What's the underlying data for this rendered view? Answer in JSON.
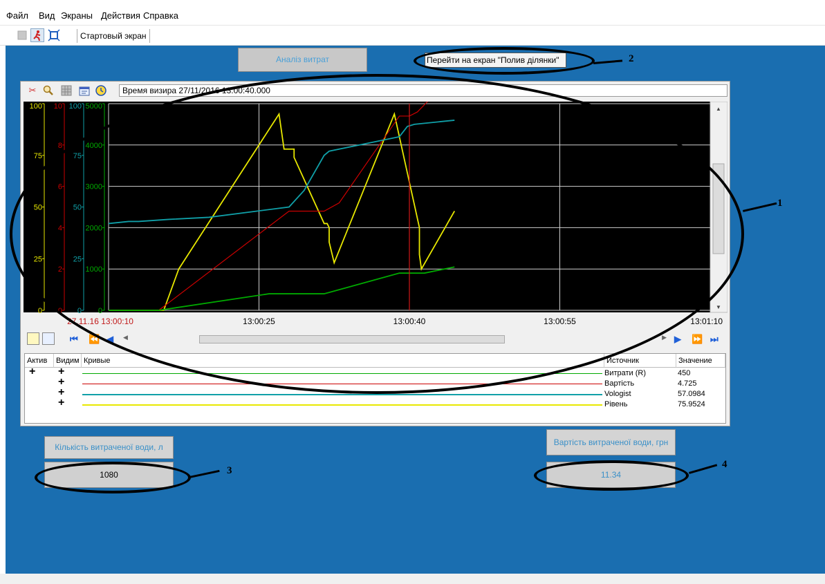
{
  "menu": [
    "Файл",
    "Вид",
    "Экраны",
    "Действия",
    "Справка"
  ],
  "toolbar": {
    "start_screen_tab": "Стартовый экран"
  },
  "screen": {
    "analysis_button": "Аналіз витрат",
    "goto_button": "Перейти на екран \"Полив ділянки\"",
    "water_amount_label": "Кількість витраченої води, л",
    "water_amount_value": "1080",
    "water_cost_label": "Вартість витраченої води, грн",
    "water_cost_value": "11.34"
  },
  "trend": {
    "sight_time": "Время визира 27/11/2016 13:00:40.000",
    "legend_headers": {
      "active": "Актив",
      "visible": "Видим",
      "curves": "Кривые",
      "source": "Источник",
      "value": "Значение"
    },
    "legend_rows": [
      {
        "marker": "+",
        "source": "Витрати (R)",
        "value": "450",
        "color": "#00aa00"
      },
      {
        "marker": "+",
        "source": "Вартість",
        "value": "4.725",
        "color": "#cc0000"
      },
      {
        "marker": "+",
        "source": "Vologist",
        "value": "57.0984",
        "color": "#10a0a8"
      },
      {
        "marker": "+",
        "source": "Рівень",
        "value": "75.9524",
        "color": "#e8e800"
      }
    ]
  },
  "chart_data": {
    "type": "line",
    "x_tick_labels": [
      "27.11.16 13:00:10",
      "13:00:25",
      "13:00:40",
      "13:00:55",
      "13:01:10"
    ],
    "x_range_seconds": [
      10,
      70
    ],
    "cursor_time": "13:00:40",
    "axes": [
      {
        "series": "Рівень",
        "color": "#e8e800",
        "range": [
          0,
          100
        ],
        "ticks": [
          "0",
          "25",
          "50",
          "75",
          "100"
        ]
      },
      {
        "series": "Вартість",
        "color": "#cc0000",
        "range": [
          0,
          10
        ],
        "ticks": [
          "0",
          "2",
          "4",
          "6",
          "8",
          "10"
        ]
      },
      {
        "series": "Vologist",
        "color": "#10a0a8",
        "range": [
          0,
          100
        ],
        "ticks": [
          "0",
          "25",
          "50",
          "75",
          "100"
        ]
      },
      {
        "series": "Витрати (R)",
        "color": "#00aa00",
        "range": [
          0,
          5000
        ],
        "ticks": [
          "0",
          "1000",
          "2000",
          "3000",
          "4000",
          "5000"
        ]
      }
    ],
    "series": [
      {
        "name": "Рівень",
        "color": "#e8e800",
        "x": [
          10,
          15.5,
          17,
          27,
          27.5,
          28.5,
          28.5,
          31.5,
          31.8,
          32,
          32,
          32.5,
          38.5,
          41,
          41,
          41.2,
          44.5
        ],
        "y": [
          0,
          0,
          20,
          95,
          78,
          78,
          74,
          42,
          42,
          40,
          33,
          23,
          95,
          40,
          27,
          20,
          48
        ]
      },
      {
        "name": "Вартість",
        "color": "#cc0000",
        "x": [
          10,
          15,
          28,
          31.5,
          33,
          39,
          40,
          40.8,
          42
        ],
        "y": [
          0,
          0,
          4.8,
          4.8,
          5.2,
          9.4,
          9.4,
          9.6,
          10.2
        ]
      },
      {
        "name": "Vologist",
        "color": "#10a0a8",
        "x": [
          10,
          12,
          13,
          16,
          20,
          28,
          29.5,
          31.5,
          32,
          39,
          39.8,
          40.5,
          44.5
        ],
        "y": [
          42,
          43,
          43,
          44,
          45,
          50,
          58,
          75,
          77,
          84,
          89,
          90,
          92
        ]
      },
      {
        "name": "Витрати (R)",
        "color": "#00aa00",
        "x": [
          10,
          14,
          15,
          26,
          31.5,
          39,
          41.5,
          44.5
        ],
        "y": [
          0,
          0,
          0,
          400,
          400,
          900,
          900,
          1050
        ]
      }
    ]
  },
  "annotations": [
    "1",
    "2",
    "3",
    "4"
  ]
}
